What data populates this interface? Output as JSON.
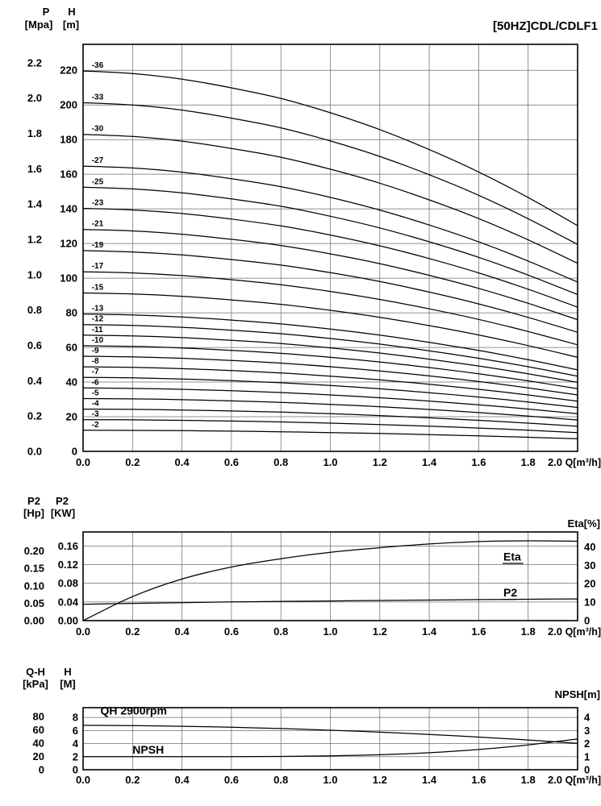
{
  "page_title": "[50HZ]CDL/CDLF1",
  "chart_data": [
    {
      "type": "line",
      "id": "hq-stage-curves",
      "title": "[50HZ]CDL/CDLF1",
      "x_unit": "Q[m³/h]",
      "xlim": [
        0,
        2.0
      ],
      "x_tick_labels": [
        "0.0",
        "0.2",
        "0.4",
        "0.6",
        "0.8",
        "1.0",
        "1.2",
        "1.4",
        "1.6",
        "1.8",
        "2.0"
      ],
      "x": [
        0,
        0.2,
        0.4,
        0.6,
        0.8,
        1.0,
        1.2,
        1.4,
        1.6,
        1.8,
        2.0
      ],
      "axis_p": {
        "name": "P",
        "unit": "[Mpa]",
        "tick_labels": [
          "2.2",
          "2.0",
          "1.8",
          "1.6",
          "1.4",
          "1.2",
          "1.0",
          "0.8",
          "0.6",
          "0.4",
          "0.2",
          "0.0"
        ],
        "tick_values": [
          2.2,
          2.0,
          1.8,
          1.6,
          1.4,
          1.2,
          1.0,
          0.8,
          0.6,
          0.4,
          0.2,
          0.0
        ]
      },
      "axis_h": {
        "name": "H",
        "unit": "[m]",
        "tick_labels": [
          "220",
          "200",
          "180",
          "160",
          "140",
          "120",
          "100",
          "80",
          "60",
          "40",
          "20",
          "0"
        ],
        "tick_values": [
          220,
          200,
          180,
          160,
          140,
          120,
          100,
          80,
          60,
          40,
          20,
          0
        ],
        "max": 235
      },
      "grid_h_values": [
        20,
        40,
        60,
        80,
        100,
        120,
        140,
        160,
        180,
        200,
        220
      ],
      "stages": [
        36,
        33,
        30,
        27,
        25,
        23,
        21,
        19,
        17,
        15,
        13,
        12,
        11,
        10,
        9,
        8,
        7,
        6,
        5,
        4,
        3,
        2
      ],
      "curve_labels": [
        "-36",
        "-33",
        "-30",
        "-27",
        "-25",
        "-23",
        "-21",
        "-19",
        "-17",
        "-15",
        "-13",
        "-12",
        "-11",
        "-10",
        "-9",
        "-8",
        "-7",
        "-6",
        "-5",
        "-4",
        "-3",
        "-2"
      ],
      "unit_head_m": [
        6.1,
        6.06,
        5.97,
        5.83,
        5.66,
        5.43,
        5.16,
        4.84,
        4.48,
        4.07,
        3.62
      ],
      "series_rule": "head[m] at x[j] for curve i = stages[i] * unit_head_m[j]"
    },
    {
      "type": "line",
      "id": "power-efficiency",
      "x_unit": "Q[m³/h]",
      "xlim": [
        0,
        2.0
      ],
      "x_tick_labels": [
        "0.0",
        "0.2",
        "0.4",
        "0.6",
        "0.8",
        "1.0",
        "1.2",
        "1.4",
        "1.6",
        "1.8",
        "2.0"
      ],
      "x": [
        0,
        0.2,
        0.4,
        0.6,
        0.8,
        1.0,
        1.2,
        1.4,
        1.6,
        1.8,
        2.0
      ],
      "axis_hp": {
        "name": "P2",
        "unit": "[Hp]",
        "tick_labels": [
          "0.20",
          "0.15",
          "0.10",
          "0.05",
          "0.00"
        ],
        "tick_values": [
          0.2,
          0.15,
          0.1,
          0.05,
          0.0
        ]
      },
      "axis_kw": {
        "name": "P2",
        "unit": "[KW]",
        "tick_labels": [
          "0.16",
          "0.12",
          "0.08",
          "0.04",
          "0.00"
        ],
        "tick_values": [
          0.16,
          0.12,
          0.08,
          0.04,
          0.0
        ],
        "max": 0.19
      },
      "axis_eta": {
        "name": "Eta[%]",
        "tick_labels": [
          "40",
          "30",
          "20",
          "10",
          "0"
        ],
        "tick_values": [
          40,
          30,
          20,
          10,
          0
        ],
        "max": 48
      },
      "grid_kw_values": [
        0.04,
        0.08,
        0.12,
        0.16
      ],
      "series": [
        {
          "name": "Eta",
          "scale": "eta",
          "underline": true,
          "label_pos": [
            1.7,
            32.5
          ],
          "values": [
            0,
            13,
            22.5,
            29,
            33.5,
            37,
            39.5,
            41.5,
            42.8,
            43.2,
            43.0
          ]
        },
        {
          "name": "P2",
          "scale": "kw",
          "underline": true,
          "label_pos": [
            1.7,
            0.0515
          ],
          "values": [
            0.035,
            0.037,
            0.0385,
            0.04,
            0.0412,
            0.0422,
            0.0432,
            0.0441,
            0.045,
            0.0458,
            0.0465
          ]
        }
      ]
    },
    {
      "type": "line",
      "id": "qh-npsh",
      "x_unit": "Q[m³/h]",
      "xlim": [
        0,
        2.0
      ],
      "x_tick_labels": [
        "0.0",
        "0.2",
        "0.4",
        "0.6",
        "0.8",
        "1.0",
        "1.2",
        "1.4",
        "1.6",
        "1.8",
        "2.0"
      ],
      "x": [
        0,
        0.2,
        0.4,
        0.6,
        0.8,
        1.0,
        1.2,
        1.4,
        1.6,
        1.8,
        2.0
      ],
      "axis_kpa": {
        "name": "Q-H",
        "unit": "[kPa]",
        "tick_labels": [
          "80",
          "60",
          "40",
          "20",
          "0"
        ],
        "tick_values": [
          80,
          60,
          40,
          20,
          0
        ]
      },
      "axis_m": {
        "name": "H",
        "unit": "[M]",
        "tick_labels": [
          "8",
          "6",
          "4",
          "2",
          "0"
        ],
        "tick_values": [
          8,
          6,
          4,
          2,
          0
        ],
        "max": 9.5
      },
      "axis_npsh": {
        "name": "NPSH[m]",
        "tick_labels": [
          "4",
          "3",
          "2",
          "1",
          "0"
        ],
        "tick_values": [
          4,
          3,
          2,
          1,
          0
        ]
      },
      "grid_m_values": [
        2,
        4,
        6,
        8
      ],
      "series": [
        {
          "name": "QH 2900rpm",
          "scale": "m",
          "underline": false,
          "label_pos": [
            0.07,
            8.45
          ],
          "values": [
            6.8,
            6.75,
            6.65,
            6.5,
            6.3,
            6.05,
            5.75,
            5.4,
            5.0,
            4.55,
            4.05
          ]
        },
        {
          "name": "NPSH",
          "scale": "npsh",
          "underline": false,
          "label_pos": [
            0.2,
            1.22
          ],
          "values": [
            1.0,
            1.0,
            1.0,
            1.0,
            1.02,
            1.07,
            1.15,
            1.3,
            1.55,
            1.9,
            2.35
          ]
        }
      ]
    }
  ]
}
